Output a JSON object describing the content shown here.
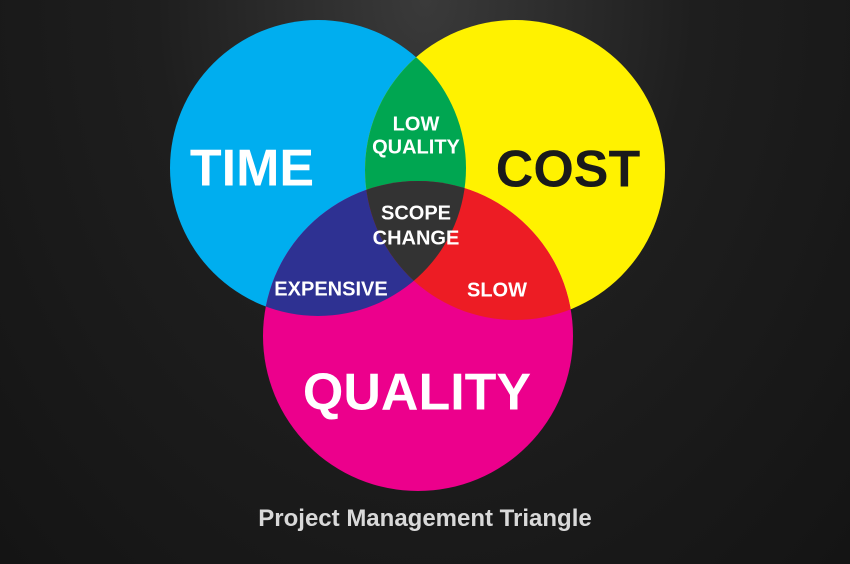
{
  "diagram": {
    "sets": [
      {
        "id": "time",
        "label": "TIME",
        "color": "#00aeef"
      },
      {
        "id": "cost",
        "label": "COST",
        "color": "#fff200"
      },
      {
        "id": "quality",
        "label": "QUALITY",
        "color": "#ec008c"
      }
    ],
    "intersections": {
      "time_cost": {
        "lines": [
          "LOW",
          "QUALITY"
        ],
        "color": "#00a651"
      },
      "time_quality": {
        "lines": [
          "EXPENSIVE"
        ],
        "color": "#2e3192"
      },
      "cost_quality": {
        "lines": [
          "SLOW"
        ],
        "color": "#ed1c24"
      },
      "all": {
        "lines": [
          "SCOPE",
          "CHANGE"
        ],
        "color": "#333333"
      }
    },
    "caption": "Project Management Triangle"
  }
}
